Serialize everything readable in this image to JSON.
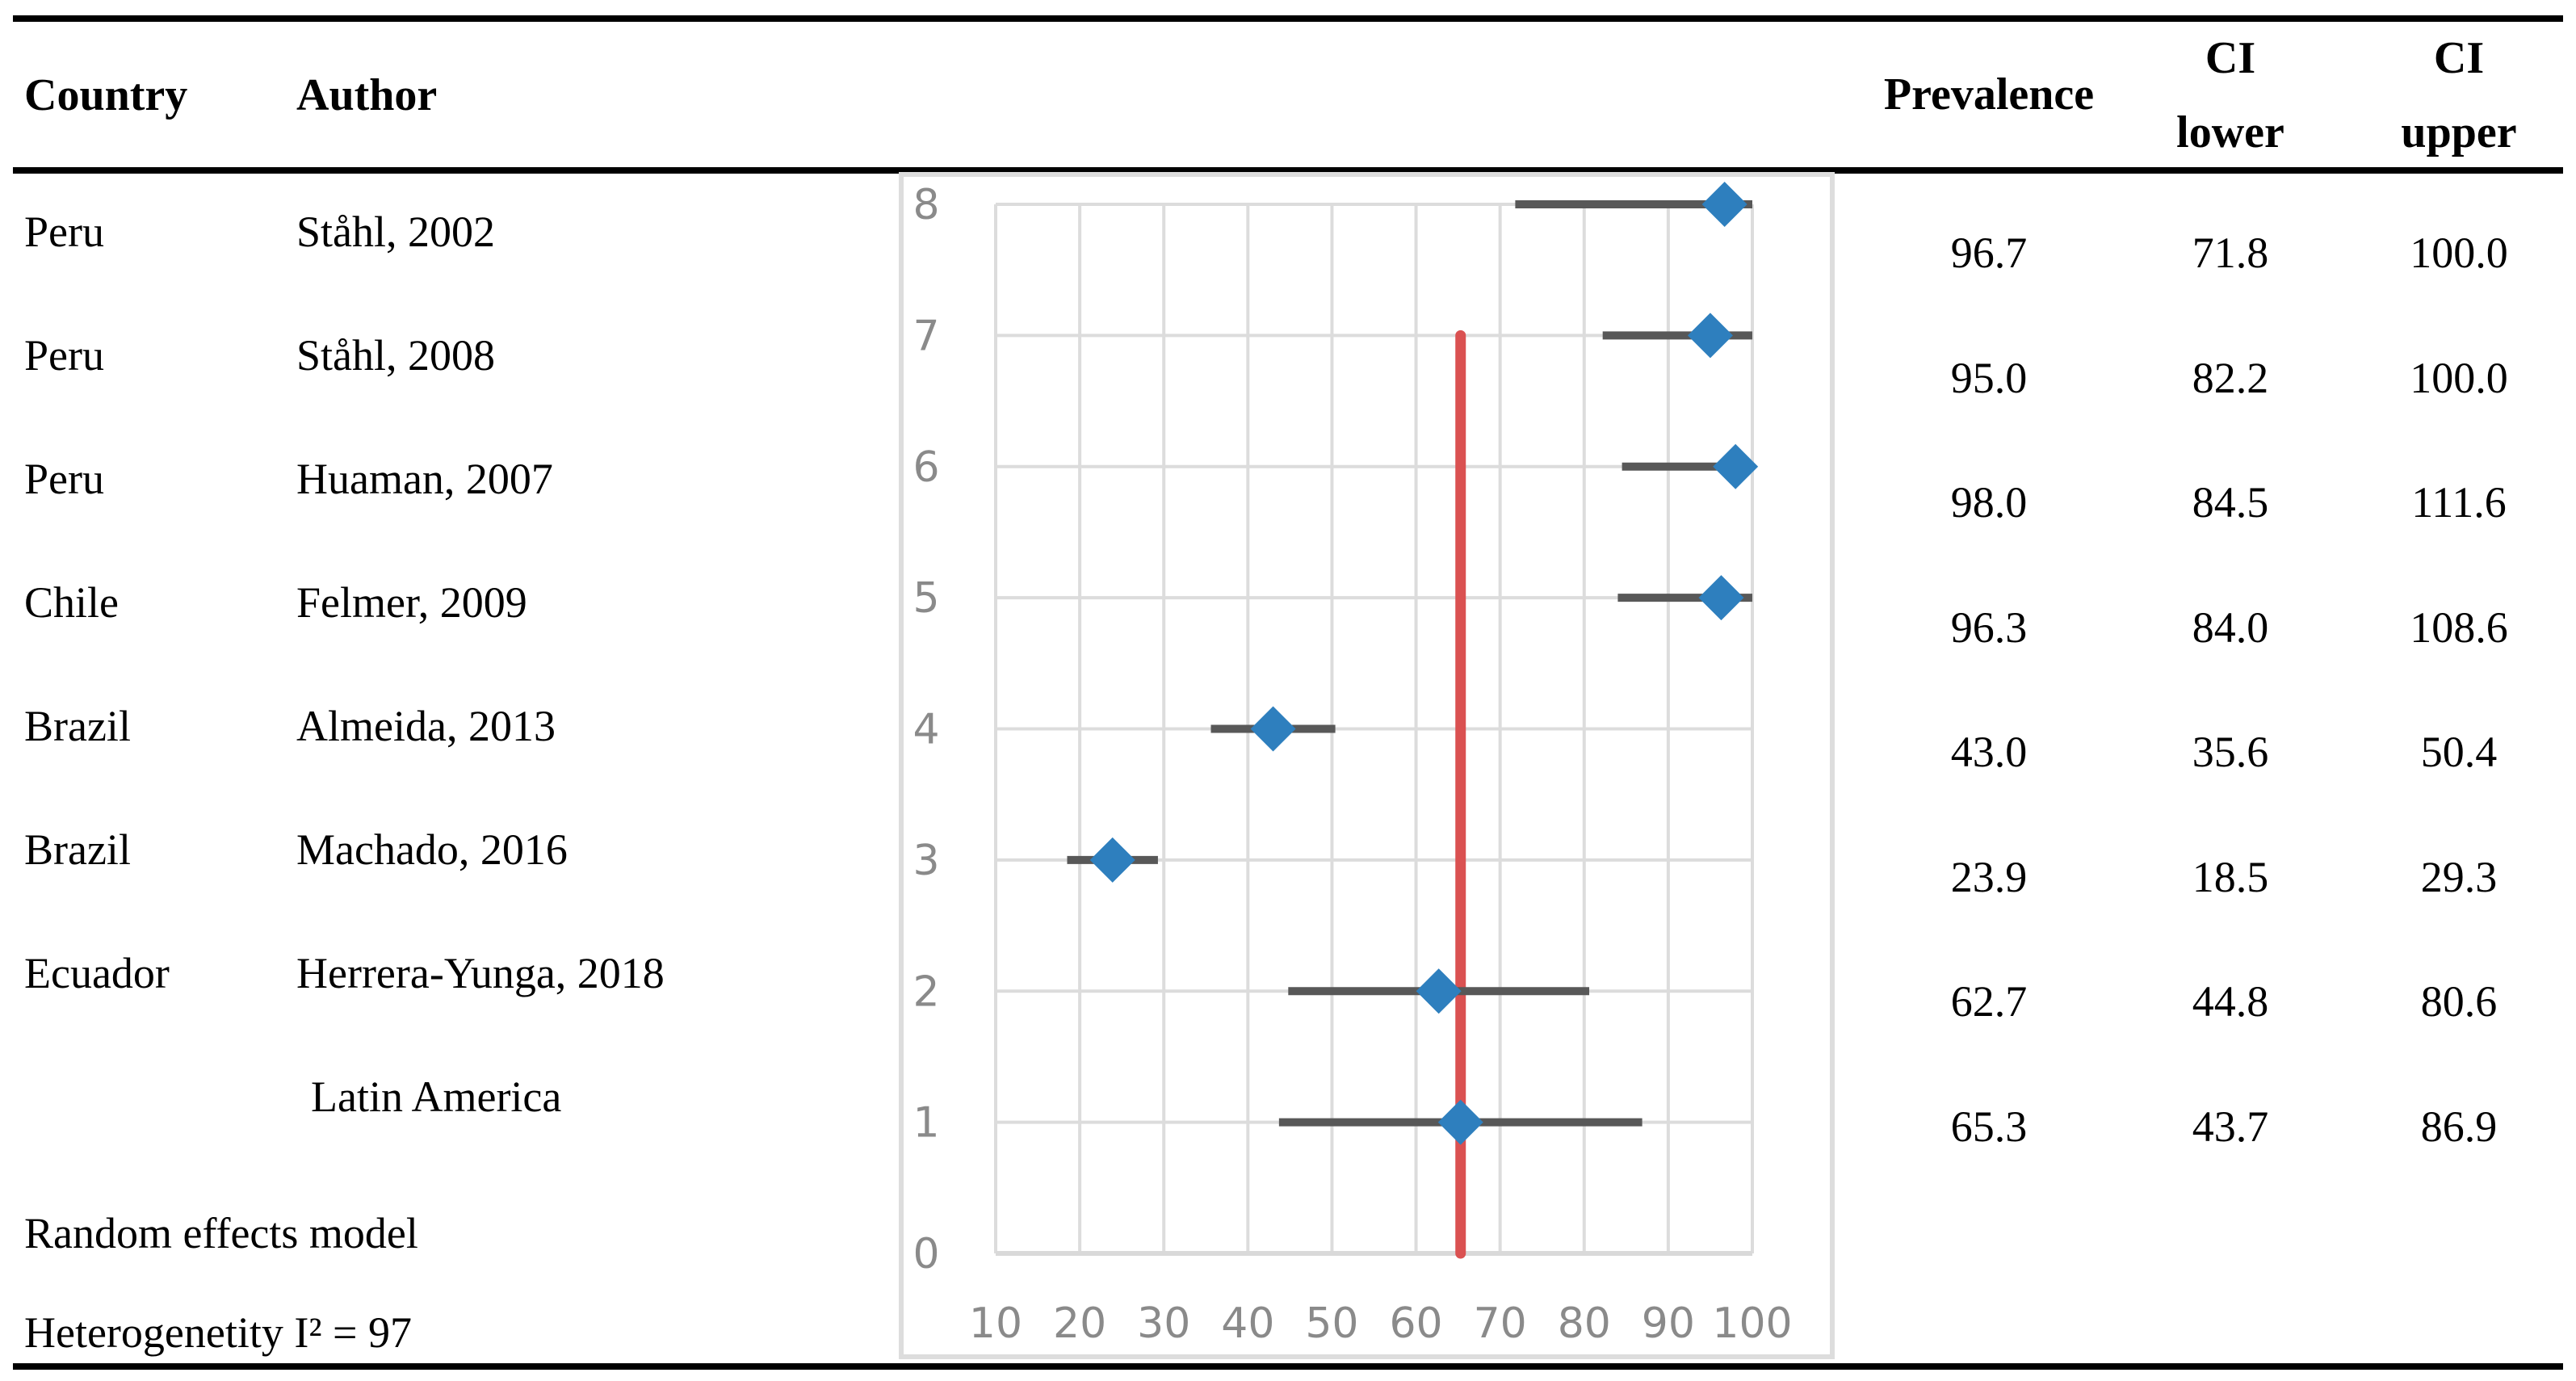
{
  "table": {
    "headers": {
      "country": "Country",
      "author": "Author",
      "prevalence": "Prevalence",
      "ci_lower": {
        "l1": "CI",
        "l2": "lower"
      },
      "ci_upper": {
        "l1": "CI",
        "l2": "upper"
      }
    },
    "rows": [
      {
        "country": "Peru",
        "author": "Ståhl, 2002",
        "prevalence": "96.7",
        "ci_lower": "71.8",
        "ci_upper": "100.0"
      },
      {
        "country": "Peru",
        "author": "Ståhl,  2008",
        "prevalence": "95.0",
        "ci_lower": "82.2",
        "ci_upper": "100.0"
      },
      {
        "country": "Peru",
        "author": "Huaman, 2007",
        "prevalence": "98.0",
        "ci_lower": "84.5",
        "ci_upper": "111.6"
      },
      {
        "country": "Chile",
        "author": "Felmer, 2009",
        "prevalence": "96.3",
        "ci_lower": "84.0",
        "ci_upper": "108.6"
      },
      {
        "country": "Brazil",
        "author": "Almeida, 2013",
        "prevalence": "43.0",
        "ci_lower": "35.6",
        "ci_upper": "50.4"
      },
      {
        "country": "Brazil",
        "author": "Machado, 2016",
        "prevalence": "23.9",
        "ci_lower": "18.5",
        "ci_upper": "29.3"
      },
      {
        "country": "Ecuador",
        "author": "Herrera-Yunga, 2018",
        "prevalence": "62.7",
        "ci_lower": "44.8",
        "ci_upper": "80.6"
      },
      {
        "country": "",
        "author": "Latin America",
        "prevalence": "65.3",
        "ci_lower": "43.7",
        "ci_upper": "86.9"
      }
    ],
    "footer": {
      "model": "Random effects model",
      "heterogeneity": "Heterogenetity I² = 97"
    }
  },
  "chart_data": {
    "type": "scatter",
    "subtype": "forest-plot",
    "title": "",
    "xlabel": "",
    "ylabel": "",
    "xlim": [
      10,
      100
    ],
    "ylim": [
      0,
      8
    ],
    "xticks": [
      10,
      20,
      30,
      40,
      50,
      60,
      70,
      80,
      90,
      100
    ],
    "yticks": [
      0,
      1,
      2,
      3,
      4,
      5,
      6,
      7,
      8
    ],
    "grid": true,
    "legend": false,
    "points": [
      {
        "row": 8,
        "label": "Ståhl, 2002",
        "x": 96.7,
        "ci": [
          71.8,
          100.0
        ]
      },
      {
        "row": 7,
        "label": "Ståhl, 2008",
        "x": 95.0,
        "ci": [
          82.2,
          100.0
        ]
      },
      {
        "row": 6,
        "label": "Huaman, 2007",
        "x": 98.0,
        "ci": [
          84.5,
          111.6
        ]
      },
      {
        "row": 5,
        "label": "Felmer, 2009",
        "x": 96.3,
        "ci": [
          84.0,
          108.6
        ]
      },
      {
        "row": 4,
        "label": "Almeida, 2013",
        "x": 43.0,
        "ci": [
          35.6,
          50.4
        ]
      },
      {
        "row": 3,
        "label": "Machado, 2016",
        "x": 23.9,
        "ci": [
          18.5,
          29.3
        ]
      },
      {
        "row": 2,
        "label": "Herrera-Yunga, 2018",
        "x": 62.7,
        "ci": [
          44.8,
          80.6
        ]
      },
      {
        "row": 1,
        "label": "Latin America",
        "x": 65.3,
        "ci": [
          43.7,
          86.9
        ]
      }
    ],
    "reference_line": {
      "x": 65.3,
      "from_row": 0,
      "to_row": 7
    }
  },
  "colors": {
    "diamond": "#2E7FBE",
    "whisker": "#585858",
    "gridline": "#DCDCDC",
    "grid_axis": "#D9D9D9",
    "chart_border": "#DDDDDD",
    "axis_label": "#8A8A8A",
    "reference_line": "#DA5151",
    "rule": "#000000"
  }
}
